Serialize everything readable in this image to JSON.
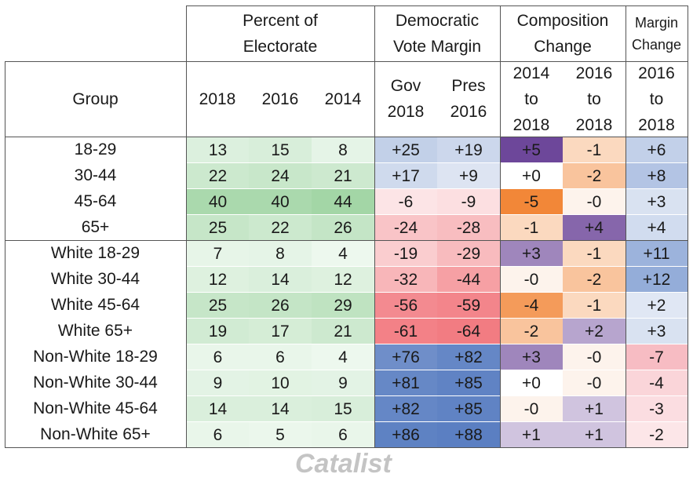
{
  "chart_data": {
    "type": "table",
    "title": "",
    "column_groups": [
      {
        "label_lines": [
          "Percent of",
          "Electorate"
        ],
        "key": "percent"
      },
      {
        "label_lines": [
          "Democratic",
          "Vote Margin"
        ],
        "key": "margin"
      },
      {
        "label_lines": [
          "Composition",
          "Change"
        ],
        "key": "comp"
      },
      {
        "label_lines": [
          "Margin",
          "Change"
        ],
        "key": "mchange"
      }
    ],
    "row_header_label": "Group",
    "columns": [
      {
        "label_lines": [
          "2018"
        ]
      },
      {
        "label_lines": [
          "2016"
        ]
      },
      {
        "label_lines": [
          "2014"
        ]
      },
      {
        "label_lines": [
          "Gov",
          "2018"
        ]
      },
      {
        "label_lines": [
          "Pres",
          "2016"
        ]
      },
      {
        "label_lines": [
          "2014",
          "to",
          "2018"
        ]
      },
      {
        "label_lines": [
          "2016",
          "to",
          "2018"
        ]
      },
      {
        "label_lines": [
          "2016",
          "to",
          "2018"
        ]
      }
    ],
    "rows": [
      {
        "group": "18-29",
        "values": [
          "13",
          "15",
          "8",
          "+25",
          "+19",
          "+5",
          "-1",
          "+6"
        ]
      },
      {
        "group": "30-44",
        "values": [
          "22",
          "24",
          "21",
          "+17",
          "+9",
          "+0",
          "-2",
          "+8"
        ]
      },
      {
        "group": "45-64",
        "values": [
          "40",
          "40",
          "44",
          "-6",
          "-9",
          "-5",
          "-0",
          "+3"
        ]
      },
      {
        "group": "65+",
        "values": [
          "25",
          "22",
          "26",
          "-24",
          "-28",
          "-1",
          "+4",
          "+4"
        ]
      },
      {
        "group": "White 18-29",
        "values": [
          "7",
          "8",
          "4",
          "-19",
          "-29",
          "+3",
          "-1",
          "+11"
        ]
      },
      {
        "group": "White 30-44",
        "values": [
          "12",
          "14",
          "12",
          "-32",
          "-44",
          "-0",
          "-2",
          "+12"
        ]
      },
      {
        "group": "White 45-64",
        "values": [
          "25",
          "26",
          "29",
          "-56",
          "-59",
          "-4",
          "-1",
          "+2"
        ]
      },
      {
        "group": "White 65+",
        "values": [
          "19",
          "17",
          "21",
          "-61",
          "-64",
          "-2",
          "+2",
          "+3"
        ]
      },
      {
        "group": "Non-White 18-29",
        "values": [
          "6",
          "6",
          "4",
          "+76",
          "+82",
          "+3",
          "-0",
          "-7"
        ]
      },
      {
        "group": "Non-White 30-44",
        "values": [
          "9",
          "10",
          "9",
          "+81",
          "+85",
          "+0",
          "-0",
          "-4"
        ]
      },
      {
        "group": "Non-White 45-64",
        "values": [
          "14",
          "14",
          "15",
          "+82",
          "+85",
          "-0",
          "+1",
          "-3"
        ]
      },
      {
        "group": "Non-White 65+",
        "values": [
          "6",
          "5",
          "6",
          "+86",
          "+88",
          "+1",
          "+1",
          "-2"
        ]
      }
    ],
    "watermark": "Catalist",
    "colors": {
      "percent_high": "#a3d6a6",
      "margin_positive": "#5b7fc2",
      "margin_negative": "#f27c82",
      "comp_positive": "#6d479a",
      "comp_negative": "#f28738",
      "change_positive": "#7d9bd1",
      "change_negative": "#f6b6be"
    }
  }
}
